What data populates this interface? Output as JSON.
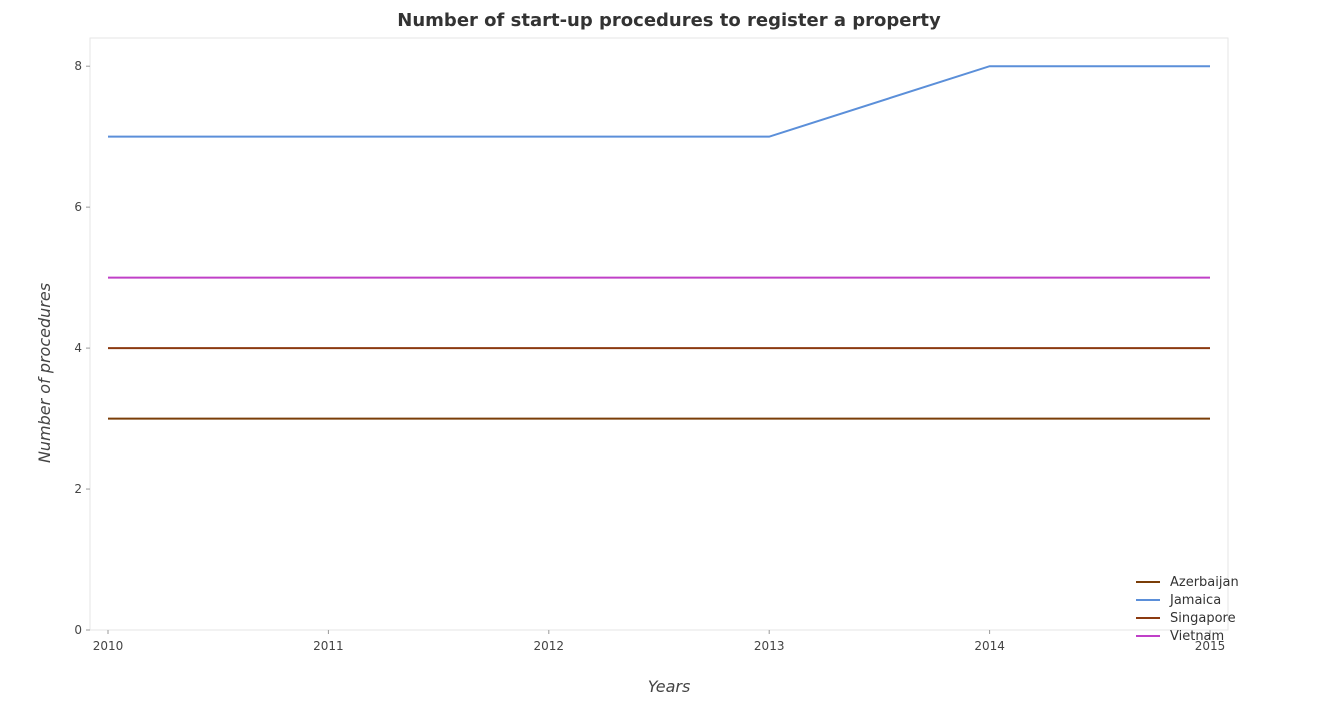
{
  "chart_data": {
    "type": "line",
    "title": "Number of start-up procedures to register a property",
    "xlabel": "Years",
    "ylabel": "Number of procedures",
    "x": [
      "2010",
      "2011",
      "2012",
      "2013",
      "2014",
      "2015"
    ],
    "ylim": [
      0,
      8.4
    ],
    "yticks": [
      "0",
      "2",
      "4",
      "6",
      "8"
    ],
    "grid": false,
    "legend_position": "bottom-right",
    "series": [
      {
        "name": "Azerbaijan",
        "values": [
          3,
          3,
          3,
          3,
          3,
          3
        ],
        "color": "#7a3d08"
      },
      {
        "name": "Jamaica",
        "values": [
          7,
          7,
          7,
          7,
          8,
          8
        ],
        "color": "#5b8fd9"
      },
      {
        "name": "Singapore",
        "values": [
          4,
          4,
          4,
          4,
          4,
          4
        ],
        "color": "#8b3a10"
      },
      {
        "name": "Vietnam",
        "values": [
          5,
          5,
          5,
          5,
          5,
          5
        ],
        "color": "#c040c8"
      }
    ]
  }
}
